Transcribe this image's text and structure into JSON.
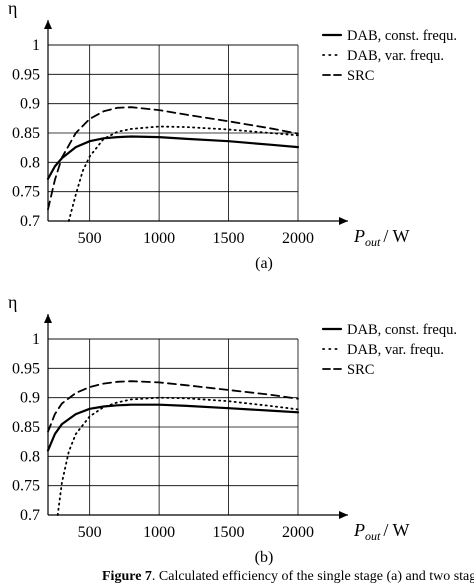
{
  "chart_data": [
    {
      "type": "line",
      "panel_label": "(a)",
      "ylabel": "η",
      "xlabel": {
        "main": "P",
        "sub": "out",
        "unit": "/ W"
      },
      "xlim": [
        200,
        2150
      ],
      "ylim": [
        0.7,
        1.0
      ],
      "xticks": [
        500,
        1000,
        1500,
        2000
      ],
      "yticks": [
        0.7,
        0.75,
        0.8,
        0.85,
        0.9,
        0.95,
        1
      ],
      "ytick_labels": [
        "0.7",
        "0.75",
        "0.8",
        "0.85",
        "0.9",
        "0.95",
        "1"
      ],
      "grid": true,
      "legend_position": "top-right",
      "series": [
        {
          "name": "DAB, const. frequ.",
          "style": "solid",
          "x": [
            200,
            250,
            300,
            400,
            500,
            600,
            700,
            800,
            1000,
            1200,
            1500,
            1800,
            2000
          ],
          "y": [
            0.772,
            0.793,
            0.807,
            0.826,
            0.836,
            0.841,
            0.843,
            0.844,
            0.843,
            0.84,
            0.836,
            0.83,
            0.826
          ]
        },
        {
          "name": "DAB, var. frequ.",
          "style": "dotted",
          "x": [
            350,
            400,
            450,
            500,
            600,
            700,
            800,
            1000,
            1200,
            1500,
            1800,
            2000
          ],
          "y": [
            0.7,
            0.745,
            0.785,
            0.81,
            0.84,
            0.852,
            0.857,
            0.861,
            0.86,
            0.856,
            0.85,
            0.846
          ]
        },
        {
          "name": "SRC",
          "style": "dashed",
          "x": [
            200,
            250,
            300,
            400,
            500,
            600,
            700,
            800,
            1000,
            1200,
            1500,
            1800,
            2000
          ],
          "y": [
            0.72,
            0.77,
            0.808,
            0.85,
            0.874,
            0.887,
            0.893,
            0.894,
            0.889,
            0.881,
            0.87,
            0.858,
            0.849
          ]
        }
      ]
    },
    {
      "type": "line",
      "panel_label": "(b)",
      "ylabel": "η",
      "xlabel": {
        "main": "P",
        "sub": "out",
        "unit": "/ W"
      },
      "xlim": [
        200,
        2150
      ],
      "ylim": [
        0.7,
        1.0
      ],
      "xticks": [
        500,
        1000,
        1500,
        2000
      ],
      "yticks": [
        0.7,
        0.75,
        0.8,
        0.85,
        0.9,
        0.95,
        1
      ],
      "ytick_labels": [
        "0.7",
        "0.75",
        "0.8",
        "0.85",
        "0.9",
        "0.95",
        "1"
      ],
      "grid": true,
      "legend_position": "top-right",
      "series": [
        {
          "name": "DAB, const. frequ.",
          "style": "solid",
          "x": [
            200,
            250,
            300,
            400,
            500,
            600,
            700,
            800,
            1000,
            1200,
            1500,
            1800,
            2000
          ],
          "y": [
            0.81,
            0.838,
            0.855,
            0.872,
            0.881,
            0.885,
            0.887,
            0.888,
            0.888,
            0.886,
            0.882,
            0.878,
            0.875
          ]
        },
        {
          "name": "DAB, var. frequ.",
          "style": "dotted",
          "x": [
            270,
            300,
            350,
            400,
            500,
            600,
            700,
            800,
            1000,
            1200,
            1500,
            1800,
            2000
          ],
          "y": [
            0.7,
            0.755,
            0.808,
            0.838,
            0.868,
            0.884,
            0.892,
            0.897,
            0.9,
            0.899,
            0.894,
            0.886,
            0.88
          ]
        },
        {
          "name": "SRC",
          "style": "dashed",
          "x": [
            200,
            250,
            300,
            400,
            500,
            600,
            700,
            800,
            1000,
            1200,
            1500,
            1800,
            2000
          ],
          "y": [
            0.842,
            0.872,
            0.89,
            0.908,
            0.918,
            0.924,
            0.927,
            0.928,
            0.926,
            0.921,
            0.913,
            0.905,
            0.898
          ]
        }
      ]
    }
  ],
  "caption": {
    "label": "Figure 7",
    "text": "Calculated efficiency of the single stage (a) and two stage (b)"
  }
}
